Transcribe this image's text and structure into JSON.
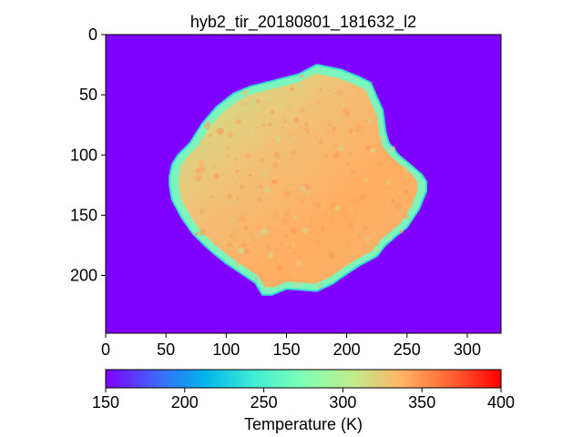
{
  "chart_data": {
    "type": "heatmap",
    "title": "hyb2_tir_20180801_181632_l2",
    "image_width": 328,
    "image_height": 248,
    "xlim": [
      0,
      328
    ],
    "ylim": [
      248,
      0
    ],
    "x_ticks": [
      0,
      50,
      100,
      150,
      200,
      250,
      300
    ],
    "y_ticks": [
      0,
      50,
      100,
      150,
      200
    ],
    "colormap": "rainbow",
    "colorbar": {
      "label": "Temperature (K)",
      "range": [
        150,
        400
      ],
      "ticks": [
        150,
        200,
        250,
        300,
        350,
        400
      ]
    },
    "background_value": 150,
    "object_outline": [
      [
        53,
        118
      ],
      [
        55,
        108
      ],
      [
        60,
        100
      ],
      [
        70,
        90
      ],
      [
        80,
        74
      ],
      [
        92,
        60
      ],
      [
        106,
        49
      ],
      [
        120,
        43
      ],
      [
        140,
        38
      ],
      [
        160,
        33
      ],
      [
        175,
        25
      ],
      [
        195,
        29
      ],
      [
        210,
        35
      ],
      [
        220,
        40
      ],
      [
        225,
        52
      ],
      [
        230,
        63
      ],
      [
        232,
        80
      ],
      [
        235,
        90
      ],
      [
        243,
        100
      ],
      [
        255,
        110
      ],
      [
        262,
        116
      ],
      [
        266,
        122
      ],
      [
        266,
        130
      ],
      [
        260,
        145
      ],
      [
        250,
        160
      ],
      [
        240,
        168
      ],
      [
        232,
        175
      ],
      [
        225,
        184
      ],
      [
        210,
        192
      ],
      [
        198,
        200
      ],
      [
        188,
        207
      ],
      [
        175,
        213
      ],
      [
        163,
        212
      ],
      [
        150,
        211
      ],
      [
        138,
        216
      ],
      [
        130,
        216
      ],
      [
        124,
        206
      ],
      [
        115,
        200
      ],
      [
        100,
        190
      ],
      [
        90,
        182
      ],
      [
        82,
        175
      ],
      [
        72,
        165
      ],
      [
        63,
        152
      ],
      [
        55,
        137
      ],
      [
        53,
        125
      ]
    ],
    "surface_temperature_range": [
      270,
      355
    ]
  },
  "colors": {
    "rainbow": [
      "#8000ff",
      "#4062fa",
      "#00b5eb",
      "#40ecd4",
      "#80ffb4",
      "#c0eb8d",
      "#ffb462",
      "#ff6232",
      "#ff0000"
    ],
    "axis": "#000000",
    "background": "#ffffff"
  }
}
